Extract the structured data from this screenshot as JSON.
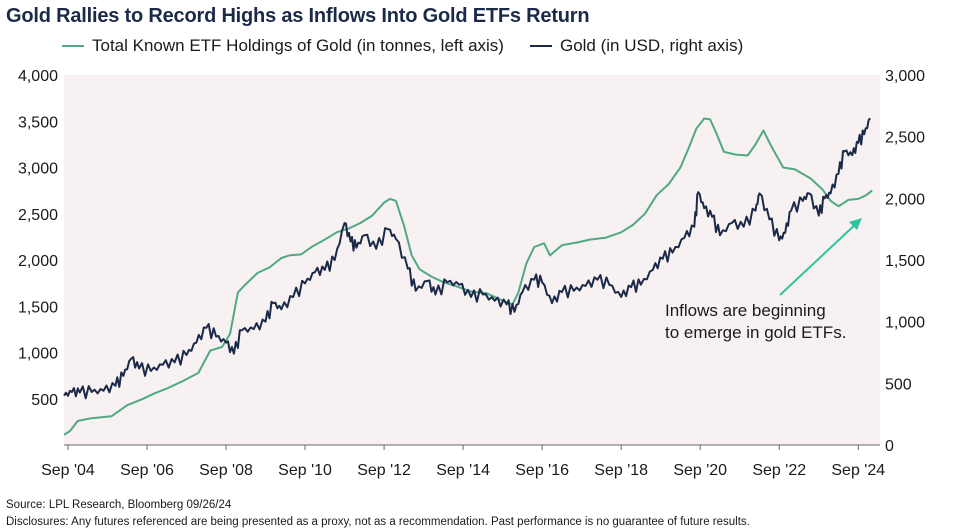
{
  "chart_data": {
    "type": "line",
    "title": "Gold Rallies to Record Highs as Inflows Into Gold ETFs Return",
    "x_ticks": [
      "Sep '04",
      "Sep '06",
      "Sep '08",
      "Sep '10",
      "Sep '12",
      "Sep '14",
      "Sep '16",
      "Sep '18",
      "Sep '20",
      "Sep '22",
      "Sep '24"
    ],
    "x_tick_years": [
      2004.7,
      2006.7,
      2008.7,
      2010.7,
      2012.7,
      2014.7,
      2016.7,
      2018.7,
      2020.7,
      2022.7,
      2024.7
    ],
    "xlim": [
      2004.6,
      2025.25
    ],
    "left_axis": {
      "ylim": [
        0,
        4000
      ],
      "ticks": [
        "4,000",
        "3,500",
        "3,000",
        "2,500",
        "2,000",
        "1,500",
        "1,000",
        "500"
      ],
      "tick_values": [
        4000,
        3500,
        3000,
        2500,
        2000,
        1500,
        1000,
        500
      ]
    },
    "right_axis": {
      "ylim": [
        0,
        3000
      ],
      "ticks": [
        "3,000",
        "2,500",
        "2,000",
        "1,500",
        "1,000",
        "500",
        "0"
      ],
      "tick_values": [
        3000,
        2500,
        2000,
        1500,
        1000,
        500,
        0
      ]
    },
    "series": [
      {
        "name": "Total Known ETF Holdings of Gold (in tonnes, left axis)",
        "axis": "left",
        "color": "#4fa886",
        "points": [
          [
            2004.6,
            110
          ],
          [
            2004.75,
            150
          ],
          [
            2004.95,
            260
          ],
          [
            2005.3,
            290
          ],
          [
            2005.8,
            310
          ],
          [
            2006.2,
            430
          ],
          [
            2006.6,
            500
          ],
          [
            2006.9,
            560
          ],
          [
            2007.2,
            610
          ],
          [
            2007.6,
            690
          ],
          [
            2008.0,
            780
          ],
          [
            2008.3,
            1020
          ],
          [
            2008.6,
            1060
          ],
          [
            2008.8,
            1200
          ],
          [
            2009.0,
            1650
          ],
          [
            2009.2,
            1740
          ],
          [
            2009.5,
            1860
          ],
          [
            2009.8,
            1920
          ],
          [
            2010.1,
            2020
          ],
          [
            2010.3,
            2050
          ],
          [
            2010.6,
            2060
          ],
          [
            2010.9,
            2150
          ],
          [
            2011.2,
            2220
          ],
          [
            2011.5,
            2300
          ],
          [
            2011.8,
            2340
          ],
          [
            2012.1,
            2400
          ],
          [
            2012.4,
            2480
          ],
          [
            2012.7,
            2620
          ],
          [
            2012.85,
            2660
          ],
          [
            2013.0,
            2640
          ],
          [
            2013.2,
            2380
          ],
          [
            2013.4,
            2050
          ],
          [
            2013.6,
            1900
          ],
          [
            2013.9,
            1820
          ],
          [
            2014.2,
            1760
          ],
          [
            2014.5,
            1720
          ],
          [
            2014.9,
            1660
          ],
          [
            2015.3,
            1640
          ],
          [
            2015.7,
            1560
          ],
          [
            2015.95,
            1520
          ],
          [
            2016.1,
            1650
          ],
          [
            2016.3,
            1960
          ],
          [
            2016.5,
            2140
          ],
          [
            2016.75,
            2180
          ],
          [
            2016.9,
            2050
          ],
          [
            2017.2,
            2160
          ],
          [
            2017.6,
            2190
          ],
          [
            2017.9,
            2220
          ],
          [
            2018.3,
            2240
          ],
          [
            2018.7,
            2300
          ],
          [
            2019.0,
            2380
          ],
          [
            2019.3,
            2500
          ],
          [
            2019.6,
            2700
          ],
          [
            2019.9,
            2820
          ],
          [
            2020.2,
            3000
          ],
          [
            2020.4,
            3200
          ],
          [
            2020.6,
            3420
          ],
          [
            2020.8,
            3530
          ],
          [
            2020.95,
            3520
          ],
          [
            2021.1,
            3380
          ],
          [
            2021.3,
            3170
          ],
          [
            2021.6,
            3140
          ],
          [
            2021.9,
            3130
          ],
          [
            2022.1,
            3250
          ],
          [
            2022.3,
            3400
          ],
          [
            2022.5,
            3230
          ],
          [
            2022.8,
            3000
          ],
          [
            2023.1,
            2980
          ],
          [
            2023.5,
            2880
          ],
          [
            2023.8,
            2760
          ],
          [
            2024.0,
            2640
          ],
          [
            2024.2,
            2580
          ],
          [
            2024.45,
            2650
          ],
          [
            2024.7,
            2660
          ],
          [
            2024.9,
            2700
          ],
          [
            2025.05,
            2750
          ]
        ]
      },
      {
        "name": "Gold (in USD, right axis)",
        "axis": "right",
        "color": "#1c2a4a",
        "points": [
          [
            2004.6,
            400
          ],
          [
            2004.8,
            430
          ],
          [
            2005.0,
            425
          ],
          [
            2005.3,
            430
          ],
          [
            2005.6,
            440
          ],
          [
            2005.9,
            480
          ],
          [
            2006.1,
            560
          ],
          [
            2006.3,
            700
          ],
          [
            2006.5,
            620
          ],
          [
            2006.8,
            600
          ],
          [
            2007.1,
            650
          ],
          [
            2007.4,
            670
          ],
          [
            2007.7,
            730
          ],
          [
            2007.95,
            830
          ],
          [
            2008.2,
            950
          ],
          [
            2008.45,
            880
          ],
          [
            2008.7,
            830
          ],
          [
            2008.9,
            740
          ],
          [
            2009.1,
            930
          ],
          [
            2009.4,
            940
          ],
          [
            2009.7,
            1000
          ],
          [
            2009.9,
            1150
          ],
          [
            2010.1,
            1100
          ],
          [
            2010.4,
            1200
          ],
          [
            2010.7,
            1310
          ],
          [
            2010.95,
            1400
          ],
          [
            2011.2,
            1420
          ],
          [
            2011.45,
            1500
          ],
          [
            2011.7,
            1800
          ],
          [
            2011.85,
            1650
          ],
          [
            2012.0,
            1600
          ],
          [
            2012.2,
            1700
          ],
          [
            2012.5,
            1590
          ],
          [
            2012.8,
            1750
          ],
          [
            2013.0,
            1670
          ],
          [
            2013.3,
            1430
          ],
          [
            2013.5,
            1250
          ],
          [
            2013.8,
            1330
          ],
          [
            2014.0,
            1220
          ],
          [
            2014.3,
            1320
          ],
          [
            2014.6,
            1300
          ],
          [
            2014.9,
            1200
          ],
          [
            2015.2,
            1220
          ],
          [
            2015.5,
            1170
          ],
          [
            2015.8,
            1140
          ],
          [
            2016.0,
            1080
          ],
          [
            2016.2,
            1240
          ],
          [
            2016.5,
            1340
          ],
          [
            2016.7,
            1320
          ],
          [
            2016.95,
            1150
          ],
          [
            2017.2,
            1240
          ],
          [
            2017.5,
            1250
          ],
          [
            2017.8,
            1290
          ],
          [
            2018.1,
            1340
          ],
          [
            2018.4,
            1300
          ],
          [
            2018.7,
            1200
          ],
          [
            2018.95,
            1280
          ],
          [
            2019.2,
            1300
          ],
          [
            2019.5,
            1420
          ],
          [
            2019.75,
            1510
          ],
          [
            2020.0,
            1560
          ],
          [
            2020.3,
            1680
          ],
          [
            2020.55,
            1770
          ],
          [
            2020.65,
            2050
          ],
          [
            2020.8,
            1920
          ],
          [
            2021.0,
            1850
          ],
          [
            2021.2,
            1700
          ],
          [
            2021.5,
            1800
          ],
          [
            2021.8,
            1770
          ],
          [
            2022.1,
            1900
          ],
          [
            2022.2,
            2040
          ],
          [
            2022.45,
            1830
          ],
          [
            2022.7,
            1660
          ],
          [
            2022.85,
            1720
          ],
          [
            2023.0,
            1900
          ],
          [
            2023.3,
            1980
          ],
          [
            2023.45,
            2040
          ],
          [
            2023.7,
            1860
          ],
          [
            2023.85,
            2000
          ],
          [
            2024.0,
            2040
          ],
          [
            2024.2,
            2200
          ],
          [
            2024.35,
            2380
          ],
          [
            2024.55,
            2350
          ],
          [
            2024.7,
            2450
          ],
          [
            2024.85,
            2520
          ],
          [
            2025.0,
            2650
          ]
        ]
      }
    ],
    "annotation": {
      "line1": "Inflows are beginning",
      "line2": "to emerge in gold ETFs.",
      "arrow_color": "#2fc4a0"
    },
    "background": "#f8f1f1",
    "grid": false
  },
  "footer": {
    "source": "Source: LPL Research, Bloomberg 09/26/24",
    "disclosure": "Disclosures: Any futures referenced are being presented as a proxy, not as a recommendation. Past performance is no guarantee of future results."
  }
}
